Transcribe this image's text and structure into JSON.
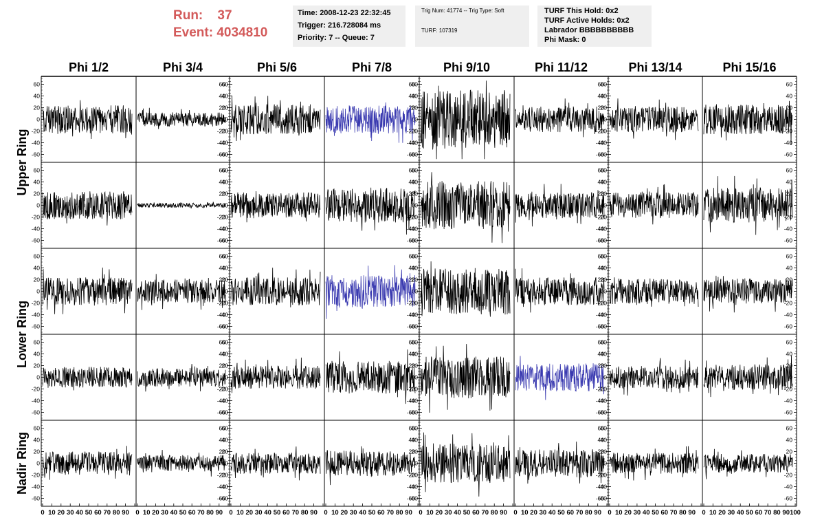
{
  "header": {
    "run_label": "Run:",
    "run_value": "37",
    "event_label": "Event:",
    "event_value": "4034810",
    "info_time": [
      "Time: 2008-12-23 22:32:45",
      "Trigger: 216.728084 ms",
      "Priority: 7 -- Queue: 7"
    ],
    "info_trig": [
      "Trig Num: 41774 -- Trig Type: Soft",
      "TURF: 107319"
    ],
    "info_turf": [
      "TURF This Hold: 0x2",
      "TURF Active Holds: 0x2",
      "Labrador BBBBBBBBBB",
      "Phi Mask: 0"
    ]
  },
  "colors": {
    "header_text": "#d35a5a",
    "info_bg": "#efefef",
    "trace_default": "#000000",
    "trace_highlight": "#3a3ab0"
  },
  "chart_data": {
    "type": "line",
    "layout": "grid",
    "columns": [
      "Phi 1/2",
      "Phi 3/4",
      "Phi 5/6",
      "Phi 7/8",
      "Phi 9/10",
      "Phi 11/12",
      "Phi 13/14",
      "Phi 15/16"
    ],
    "row_labels": [
      "Upper Ring",
      "Lower Ring",
      "Nadir Ring"
    ],
    "rows": 5,
    "xlim": [
      0,
      100
    ],
    "ylim": [
      -70,
      70
    ],
    "y_ticks": [
      -60,
      -40,
      -20,
      0,
      20,
      40,
      60
    ],
    "x_ticks": [
      0,
      10,
      20,
      30,
      40,
      50,
      60,
      70,
      80,
      90,
      100
    ],
    "x_tick_labels": [
      "0",
      "10",
      "20",
      "30",
      "40",
      "50",
      "60",
      "70",
      "80",
      "90",
      "100"
    ],
    "samples": 260,
    "highlighted": [
      [
        0,
        3
      ],
      [
        2,
        3
      ],
      [
        3,
        5
      ]
    ],
    "amplitudes": [
      [
        24,
        12,
        26,
        24,
        50,
        22,
        22,
        26
      ],
      [
        24,
        4,
        22,
        30,
        42,
        22,
        22,
        30
      ],
      [
        24,
        20,
        24,
        28,
        40,
        24,
        22,
        22
      ],
      [
        18,
        16,
        20,
        28,
        36,
        24,
        20,
        22
      ],
      [
        20,
        14,
        18,
        22,
        34,
        24,
        18,
        16
      ]
    ]
  }
}
